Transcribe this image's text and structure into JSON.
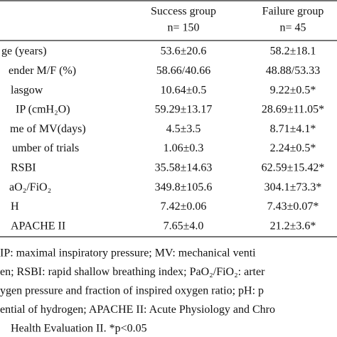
{
  "table": {
    "header": [
      [
        "Success group",
        "n= 150"
      ],
      [
        "Failure group",
        "n= 45"
      ]
    ],
    "rows": [
      [
        "ge (years)",
        "53.6±20.6",
        "58.2±18.1"
      ],
      [
        "ender M/F (%)",
        "58.66/40.66",
        "48.88/53.33"
      ],
      [
        "lasgow",
        "10.64±0.5",
        "9.22±0.5*"
      ],
      [
        "IP (cmH₂O)",
        "59.29±13.17",
        "28.69±11.05*"
      ],
      [
        "me of MV(days)",
        "4.5±3.5",
        "8.71±4.1*"
      ],
      [
        "umber of trials",
        "1.06±0.3",
        "2.24±0.5*"
      ],
      [
        "RSBI",
        "35.58±14.63",
        "62.59±15.42*"
      ],
      [
        "aO₂/FiO₂",
        "349.8±105.6",
        "304.1±73.3*"
      ],
      [
        "H",
        "7.42±0.06",
        "7.43±0.07*"
      ],
      [
        "APACHE II",
        "7.65±4.0",
        "21.2±3.6*"
      ]
    ],
    "footnote": [
      "IP: maximal inspiratory pressure; MV: mechanical venti",
      "en; RSBI: rapid shallow breathing index; PaO₂/FiO₂: arter",
      "ygen pressure and fraction of inspired oxygen ratio; pH: p",
      "ential of hydrogen; APACHE II: Acute Physiology and Chro",
      "Health Evaluation II. *p<0.05"
    ]
  }
}
